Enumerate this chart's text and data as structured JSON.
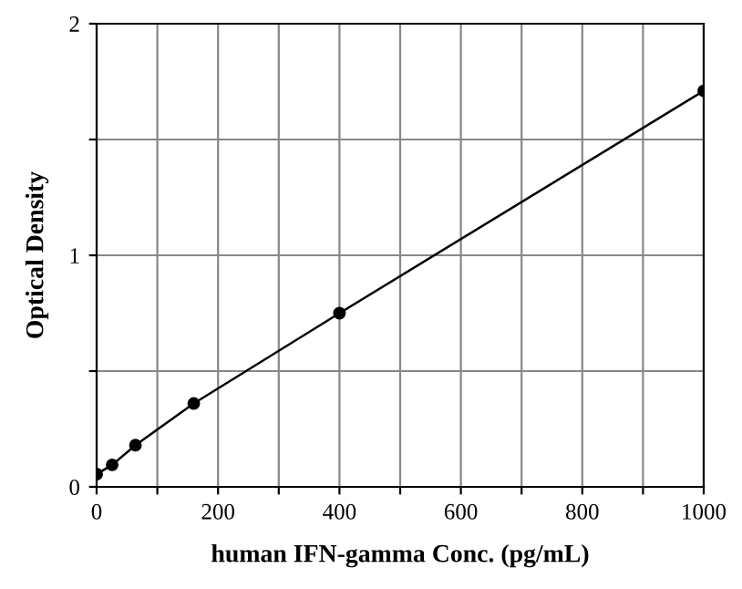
{
  "chart_data": {
    "type": "line",
    "xlabel": "human IFN-gamma Conc. (pg/mL)",
    "ylabel": "Optical Density",
    "x": [
      0,
      25.6,
      64,
      160,
      400,
      1000
    ],
    "series": [
      {
        "color": "#000000",
        "values": [
          0.055,
          0.095,
          0.18,
          0.36,
          0.75,
          1.71
        ]
      }
    ],
    "xlim": [
      0,
      1000
    ],
    "ylim": [
      0,
      2
    ],
    "xticks": [
      0,
      {
        "value": 100,
        "label": null
      },
      200,
      {
        "value": 300,
        "label": null
      },
      400,
      {
        "value": 500,
        "label": null
      },
      600,
      {
        "value": 700,
        "label": null
      },
      800,
      {
        "value": 900,
        "label": null
      },
      1000
    ],
    "yticks": [
      0,
      {
        "value": 0.5,
        "label": null
      },
      1,
      {
        "value": 1.5,
        "label": null
      },
      2
    ],
    "grid": true,
    "marker": "circle",
    "line_style": "solid"
  }
}
